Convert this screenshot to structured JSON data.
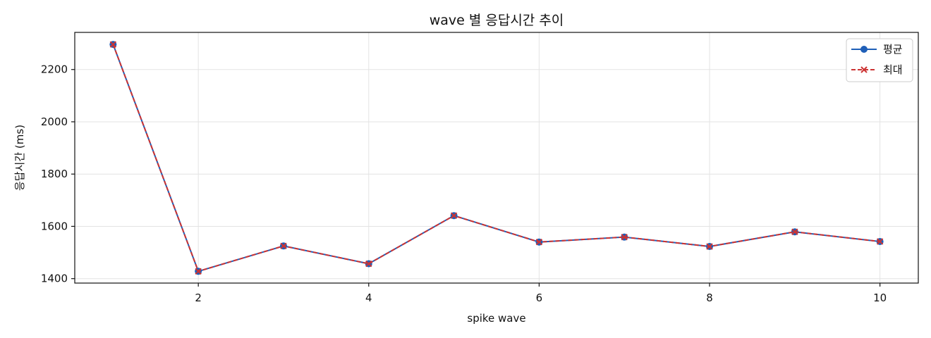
{
  "chart_data": {
    "type": "line",
    "title": "wave 별 응답시간 추이",
    "xlabel": "spike wave",
    "ylabel": "응답시간 (ms)",
    "x": [
      1,
      2,
      3,
      4,
      5,
      6,
      7,
      8,
      9,
      10
    ],
    "xlim": [
      0.55,
      10.45
    ],
    "ylim": [
      1383,
      2342
    ],
    "xticks": [
      2,
      4,
      6,
      8,
      10
    ],
    "yticks": [
      1400,
      1600,
      1800,
      2000,
      2200
    ],
    "grid": true,
    "legend_position": "top-right",
    "series": [
      {
        "name": "평균",
        "values": [
          2296,
          1428,
          1525,
          1457,
          1641,
          1540,
          1559,
          1523,
          1579,
          1542
        ],
        "color": "#1f5fb8",
        "marker": "circle",
        "linestyle": "solid"
      },
      {
        "name": "최대",
        "values": [
          2296,
          1428,
          1525,
          1457,
          1641,
          1540,
          1559,
          1523,
          1579,
          1542
        ],
        "color": "#cc3333",
        "marker": "x",
        "linestyle": "dashed"
      }
    ]
  }
}
